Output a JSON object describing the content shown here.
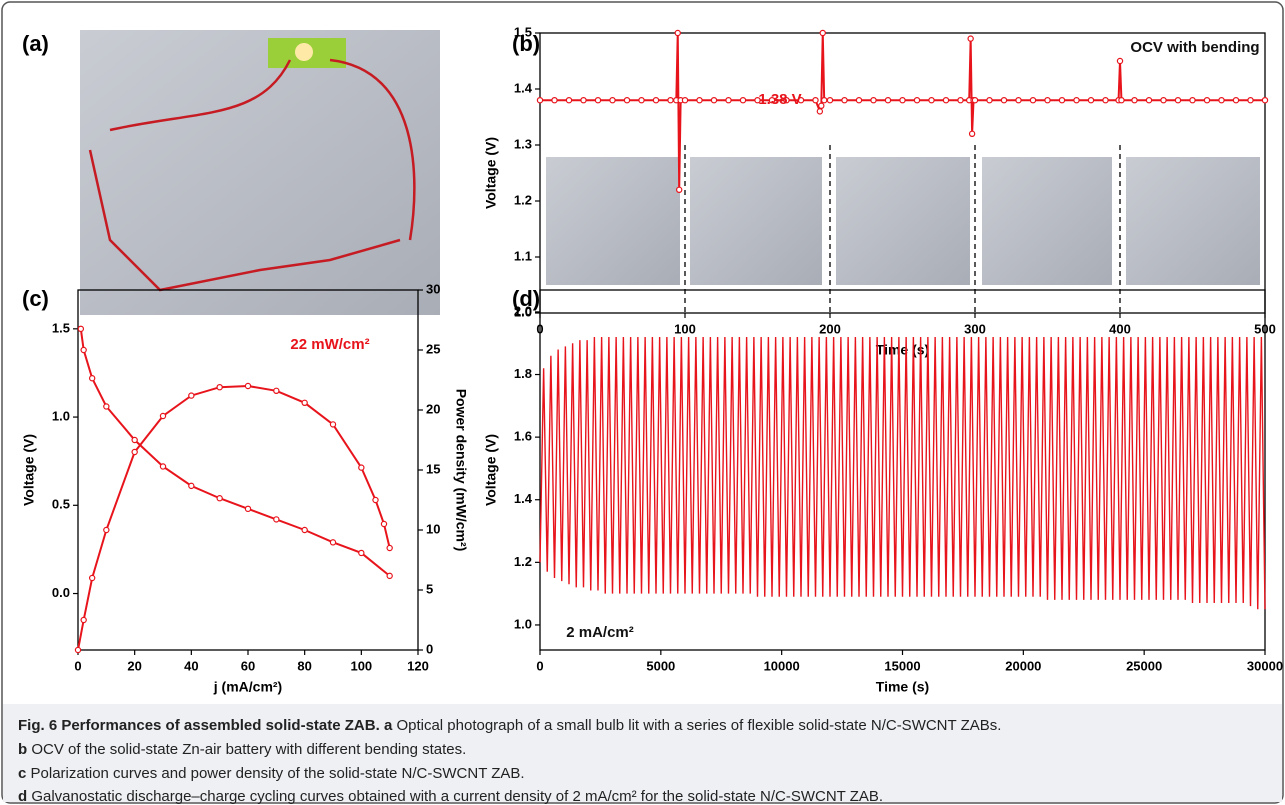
{
  "photo_panel": {
    "label": "(a)"
  },
  "chart_data": [
    {
      "type": "line",
      "panel": "(b)",
      "xlabel": "Time (s)",
      "ylabel": "Voltage (V)",
      "xlim": [
        0,
        500
      ],
      "xticks": [
        0,
        100,
        200,
        300,
        400,
        500
      ],
      "ylim": [
        1.0,
        1.5
      ],
      "yticks": [
        {
          "value": 1.0,
          "label": "1.0"
        },
        1.1,
        1.2,
        1.3,
        1.4,
        1.5
      ],
      "annotations": [
        "1.38 V",
        "OCV with bending"
      ],
      "vlines": [
        100,
        200,
        300,
        400
      ],
      "series": [
        {
          "color": "#e8141c",
          "marker": true,
          "x": [
            0,
            10,
            20,
            30,
            40,
            50,
            60,
            70,
            80,
            90,
            94,
            95,
            96,
            97,
            100,
            110,
            120,
            130,
            140,
            150,
            160,
            170,
            180,
            190,
            193,
            194,
            195,
            196,
            200,
            210,
            220,
            230,
            240,
            250,
            260,
            270,
            280,
            290,
            296,
            297,
            298,
            299,
            300,
            310,
            320,
            330,
            340,
            350,
            360,
            370,
            380,
            390,
            399,
            400,
            401,
            410,
            420,
            430,
            440,
            450,
            460,
            470,
            480,
            490,
            500
          ],
          "values": [
            1.38,
            1.38,
            1.38,
            1.38,
            1.38,
            1.38,
            1.38,
            1.38,
            1.38,
            1.38,
            1.38,
            1.5,
            1.22,
            1.38,
            1.38,
            1.38,
            1.38,
            1.38,
            1.38,
            1.38,
            1.38,
            1.38,
            1.38,
            1.38,
            1.36,
            1.37,
            1.5,
            1.38,
            1.38,
            1.38,
            1.38,
            1.38,
            1.38,
            1.38,
            1.38,
            1.38,
            1.38,
            1.38,
            1.38,
            1.49,
            1.32,
            1.38,
            1.38,
            1.38,
            1.38,
            1.38,
            1.38,
            1.38,
            1.38,
            1.38,
            1.38,
            1.38,
            1.38,
            1.45,
            1.38,
            1.38,
            1.38,
            1.38,
            1.38,
            1.38,
            1.38,
            1.38,
            1.38,
            1.38,
            1.38
          ]
        }
      ]
    },
    {
      "type": "line",
      "panel": "(c)",
      "xlabel": "j (mA/cm²)",
      "ylabel": "Voltage (V)",
      "y2label": "Power density (mW/cm²)",
      "xlim": [
        0,
        120
      ],
      "xticks": [
        0,
        20,
        40,
        60,
        80,
        100,
        120
      ],
      "ylim": [
        -0.32,
        1.72
      ],
      "yticks": [
        {
          "value": 0,
          "label": "0.0"
        },
        0.5,
        {
          "value": 1,
          "label": "1.0"
        },
        1.5
      ],
      "y2lim": [
        0,
        30
      ],
      "y2ticks": [
        0,
        5,
        10,
        15,
        20,
        25,
        30
      ],
      "annotations": [
        "22 mW/cm²"
      ],
      "series": [
        {
          "color": "#e8141c",
          "marker": true,
          "x": [
            1,
            2,
            5,
            10,
            20,
            30,
            40,
            50,
            60,
            70,
            80,
            90,
            100,
            110
          ],
          "values": [
            1.5,
            1.38,
            1.22,
            1.06,
            0.87,
            0.72,
            0.61,
            0.54,
            0.48,
            0.42,
            0.36,
            0.29,
            0.23,
            0.1
          ]
        },
        {
          "color": "#e8141c",
          "marker": true,
          "axis": "y2",
          "x": [
            0,
            2,
            5,
            10,
            20,
            30,
            40,
            50,
            60,
            70,
            80,
            90,
            100,
            105,
            108,
            110
          ],
          "values": [
            0,
            2.5,
            6,
            10,
            16.5,
            19.5,
            21.2,
            21.9,
            22,
            21.6,
            20.6,
            18.8,
            15.2,
            12.5,
            10.5,
            8.5
          ]
        }
      ]
    },
    {
      "type": "line",
      "panel": "(d)",
      "xlabel": "Time (s)",
      "ylabel": "Voltage (V)",
      "xlim": [
        0,
        30000
      ],
      "xticks": [
        0,
        5000,
        10000,
        15000,
        20000,
        25000,
        30000
      ],
      "ylim": [
        0.92,
        2.07
      ],
      "yticks": [
        {
          "value": 1,
          "label": "1.0"
        },
        1.2,
        1.4,
        1.6,
        1.8,
        {
          "value": 2,
          "label": "2.0"
        }
      ],
      "annotations": [
        "2 mA/cm²"
      ],
      "series": [
        {
          "color": "#e8141c",
          "marker": false,
          "x": [
            0,
            150,
            300,
            450,
            600,
            750,
            900,
            1050,
            1200,
            1350,
            1500,
            1650,
            1800,
            1950,
            2100,
            2250,
            2400,
            2550,
            2700,
            2850,
            3000,
            3150,
            3300,
            3450,
            3600,
            3750,
            3900,
            4050,
            4200,
            4350,
            4500,
            4650,
            4800,
            4950,
            5100,
            5250,
            5400,
            5550,
            5700,
            5850,
            6000,
            6150,
            6300,
            6450,
            6600,
            6750,
            6900,
            7050,
            7200,
            7350,
            7500,
            7650,
            7800,
            7950,
            8100,
            8250,
            8400,
            8550,
            8700,
            8850,
            9000,
            9150,
            9300,
            9450,
            9600,
            9750,
            9900,
            10050,
            10200,
            10350,
            10500,
            10650,
            10800,
            10950,
            11100,
            11250,
            11400,
            11550,
            11700,
            11850,
            12000,
            12150,
            12300,
            12450,
            12600,
            12750,
            12900,
            13050,
            13200,
            13350,
            13500,
            13650,
            13800,
            13950,
            14100,
            14250,
            14400,
            14550,
            14700,
            14850,
            15000,
            15150,
            15300,
            15450,
            15600,
            15750,
            15900,
            16050,
            16200,
            16350,
            16500,
            16650,
            16800,
            16950,
            17100,
            17250,
            17400,
            17550,
            17700,
            17850,
            18000,
            18150,
            18300,
            18450,
            18600,
            18750,
            18900,
            19050,
            19200,
            19350,
            19500,
            19650,
            19800,
            19950,
            20100,
            20250,
            20400,
            20550,
            20700,
            20850,
            21000,
            21150,
            21300,
            21450,
            21600,
            21750,
            21900,
            22050,
            22200,
            22350,
            22500,
            22650,
            22800,
            22950,
            23100,
            23250,
            23400,
            23550,
            23700,
            23850,
            24000,
            24150,
            24300,
            24450,
            24600,
            24750,
            24900,
            25050,
            25200,
            25350,
            25500,
            25650,
            25800,
            25950,
            26100,
            26250,
            26400,
            26550,
            26700,
            26850,
            27000,
            27150,
            27300,
            27450,
            27600,
            27750,
            27900,
            28050,
            28200,
            28350,
            28500,
            28650,
            28800,
            28950,
            29100,
            29250,
            29400,
            29550,
            29700,
            29850,
            30000
          ],
          "values": [
            1.2,
            1.82,
            1.17,
            1.86,
            1.15,
            1.88,
            1.14,
            1.89,
            1.13,
            1.9,
            1.12,
            1.91,
            1.12,
            1.91,
            1.11,
            1.92,
            1.11,
            1.92,
            1.1,
            1.92,
            1.1,
            1.92,
            1.1,
            1.92,
            1.1,
            1.92,
            1.1,
            1.92,
            1.1,
            1.92,
            1.1,
            1.92,
            1.1,
            1.92,
            1.1,
            1.92,
            1.1,
            1.92,
            1.1,
            1.92,
            1.1,
            1.92,
            1.1,
            1.92,
            1.1,
            1.92,
            1.1,
            1.92,
            1.1,
            1.92,
            1.1,
            1.92,
            1.1,
            1.92,
            1.1,
            1.92,
            1.1,
            1.92,
            1.1,
            1.92,
            1.09,
            1.92,
            1.09,
            1.92,
            1.09,
            1.92,
            1.09,
            1.92,
            1.09,
            1.92,
            1.09,
            1.92,
            1.09,
            1.92,
            1.09,
            1.92,
            1.09,
            1.92,
            1.09,
            1.92,
            1.09,
            1.92,
            1.09,
            1.92,
            1.09,
            1.92,
            1.09,
            1.92,
            1.09,
            1.92,
            1.09,
            1.92,
            1.09,
            1.92,
            1.09,
            1.92,
            1.09,
            1.92,
            1.09,
            1.92,
            1.09,
            1.92,
            1.09,
            1.92,
            1.09,
            1.92,
            1.09,
            1.92,
            1.09,
            1.92,
            1.09,
            1.92,
            1.09,
            1.92,
            1.09,
            1.92,
            1.09,
            1.92,
            1.09,
            1.92,
            1.09,
            1.92,
            1.09,
            1.92,
            1.09,
            1.92,
            1.09,
            1.92,
            1.09,
            1.92,
            1.09,
            1.92,
            1.09,
            1.92,
            1.09,
            1.92,
            1.09,
            1.92,
            1.09,
            1.92,
            1.08,
            1.92,
            1.08,
            1.92,
            1.08,
            1.92,
            1.08,
            1.92,
            1.08,
            1.92,
            1.08,
            1.92,
            1.08,
            1.92,
            1.08,
            1.92,
            1.08,
            1.92,
            1.08,
            1.92,
            1.08,
            1.92,
            1.08,
            1.92,
            1.08,
            1.92,
            1.08,
            1.92,
            1.08,
            1.92,
            1.08,
            1.92,
            1.08,
            1.92,
            1.08,
            1.92,
            1.08,
            1.92,
            1.08,
            1.92,
            1.07,
            1.92,
            1.07,
            1.92,
            1.07,
            1.92,
            1.07,
            1.92,
            1.07,
            1.92,
            1.07,
            1.92,
            1.07,
            1.92,
            1.07,
            1.92,
            1.06,
            1.92,
            1.05,
            1.92,
            1.05
          ]
        }
      ]
    }
  ],
  "caption": {
    "title": "Fig. 6 Performances of assembled solid-state ZAB.",
    "items": [
      {
        "key": "a",
        "text": "Optical photograph of a small bulb lit with a series of flexible solid-state N/C-SWCNT ZABs."
      },
      {
        "key": "b",
        "text": "OCV of the solid-state Zn-air battery with different bending states."
      },
      {
        "key": "c",
        "text": "Polarization curves and power density of the solid-state N/C-SWCNT ZAB."
      },
      {
        "key": "d",
        "text": "Galvanostatic discharge–charge cycling curves obtained with a current density of 2 mA/cm² for the solid-state N/C-SWCNT ZAB."
      }
    ]
  }
}
